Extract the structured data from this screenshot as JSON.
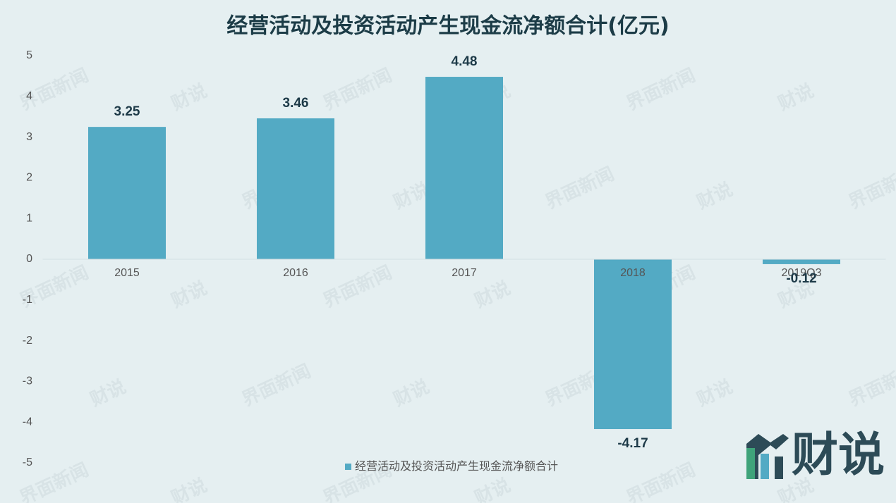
{
  "chart_data": {
    "type": "bar",
    "title": "经营活动及投资活动产生现金流净额合计(亿元)",
    "categories": [
      "2015",
      "2016",
      "2017",
      "2018",
      "2019Q3"
    ],
    "series": [
      {
        "name": "经营活动及投资活动产生现金流净额合计",
        "color": "#53aac4",
        "values": [
          3.25,
          3.46,
          4.48,
          -4.17,
          -0.12
        ]
      }
    ],
    "ylim": [
      -5,
      5
    ],
    "yticks": [
      -5,
      -4,
      -3,
      -2,
      -1,
      0,
      1,
      2,
      3,
      4,
      5
    ],
    "grid": false,
    "legend": "bottom",
    "logo": "财说",
    "watermarks": [
      "界面新闻",
      "财说"
    ]
  }
}
